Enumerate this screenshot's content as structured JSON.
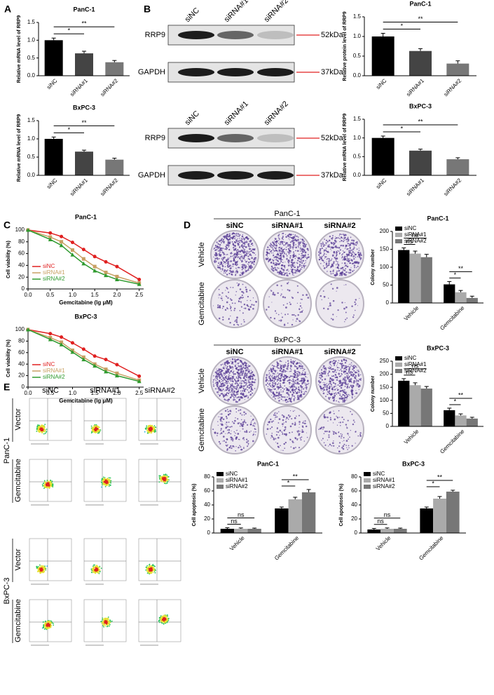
{
  "panel_labels": [
    "A",
    "B",
    "C",
    "D",
    "E"
  ],
  "blots": [
    {
      "lanes": [
        "siNC",
        "siRNA#1",
        "siRNA#2"
      ],
      "rows": [
        {
          "name": "RRP9",
          "size": "52kDa"
        },
        {
          "name": "GAPDH",
          "size": "37kDa"
        }
      ]
    },
    {
      "lanes": [
        "siNC",
        "siRNA#1",
        "siRNA#2"
      ],
      "rows": [
        {
          "name": "RRP9",
          "size": "52kDa"
        },
        {
          "name": "GAPDH",
          "size": "37kDa"
        }
      ]
    }
  ],
  "colony": [
    {
      "cell": "PanC-1",
      "columns": [
        "siNC",
        "siRNA#1",
        "siRNA#2"
      ],
      "rows": [
        "Vehicle",
        "Gemcitabine"
      ]
    },
    {
      "cell": "BxPC-3",
      "columns": [
        "siNC",
        "siRNA#1",
        "siRNA#2"
      ],
      "rows": [
        "Vehicle",
        "Gemcitabine"
      ]
    }
  ],
  "flow": {
    "columns": [
      "siNC",
      "siRNA#1",
      "siRNA#2"
    ],
    "groups": [
      {
        "cell": "PanC-1",
        "rows": [
          "Vector",
          "Gemcitabine"
        ]
      },
      {
        "cell": "BxPC-3",
        "rows": [
          "Vector",
          "Gemcitabine"
        ]
      }
    ]
  },
  "chart_data": [
    {
      "type": "bar",
      "title": "PanC-1",
      "ylabel": "Relative mRNA level of RRP9",
      "categories": [
        "siNC",
        "siRNA#1",
        "siRNA#2"
      ],
      "values": [
        1.0,
        0.63,
        0.38
      ],
      "errors": [
        0.06,
        0.06,
        0.05
      ],
      "colors": [
        "#000000",
        "#444444",
        "#777777"
      ],
      "ylim": [
        0,
        1.5
      ],
      "yticks": [
        {
          "value": 0,
          "label": "0.0"
        },
        {
          "value": 0.5,
          "label": "0.5"
        },
        {
          "value": 1,
          "label": "1.0"
        },
        {
          "value": 1.5,
          "label": "1.5"
        }
      ],
      "annotations": [
        "*",
        "**"
      ]
    },
    {
      "type": "bar",
      "title": "BxPC-3",
      "ylabel": "Relative mRNA level of RRP9",
      "categories": [
        "siNC",
        "siRNA#1",
        "siRNA#2"
      ],
      "values": [
        1.0,
        0.65,
        0.43
      ],
      "errors": [
        0.05,
        0.04,
        0.04
      ],
      "colors": [
        "#000000",
        "#444444",
        "#777777"
      ],
      "ylim": [
        0,
        1.5
      ],
      "yticks": [
        {
          "value": 0,
          "label": "0.0"
        },
        {
          "value": 0.5,
          "label": "0.5"
        },
        {
          "value": 1,
          "label": "1.0"
        },
        {
          "value": 1.5,
          "label": "1.5"
        }
      ],
      "annotations": [
        "*",
        "**"
      ]
    },
    {
      "type": "bar",
      "title": "PanC-1",
      "ylabel": "Relative protein level of RRP9",
      "categories": [
        "siNC",
        "siRNA#1",
        "siRNA#2"
      ],
      "values": [
        1.0,
        0.63,
        0.31
      ],
      "errors": [
        0.08,
        0.06,
        0.07
      ],
      "colors": [
        "#000000",
        "#444444",
        "#777777"
      ],
      "ylim": [
        0,
        1.5
      ],
      "yticks": [
        {
          "value": 0,
          "label": "0.0"
        },
        {
          "value": 0.5,
          "label": "0.5"
        },
        {
          "value": 1,
          "label": "1.0"
        },
        {
          "value": 1.5,
          "label": "1.5"
        }
      ],
      "annotations": [
        "*",
        "**"
      ]
    },
    {
      "type": "bar",
      "title": "BxPC-3",
      "ylabel": "Relative mRNA level of RRP9",
      "categories": [
        "siNC",
        "siRNA#1",
        "siRNA#2"
      ],
      "values": [
        1.0,
        0.66,
        0.43
      ],
      "errors": [
        0.05,
        0.04,
        0.04
      ],
      "colors": [
        "#000000",
        "#444444",
        "#777777"
      ],
      "ylim": [
        0,
        1.5
      ],
      "yticks": [
        {
          "value": 0,
          "label": "0.0"
        },
        {
          "value": 0.5,
          "label": "0.5"
        },
        {
          "value": 1,
          "label": "1.0"
        },
        {
          "value": 1.5,
          "label": "1.5"
        }
      ],
      "annotations": [
        "*",
        "**"
      ]
    },
    {
      "type": "line",
      "title": "PanC-1",
      "xlabel": "Gemcitabine (lg μM)",
      "ylabel": "Cell viability (%)",
      "x": [
        0,
        0.5,
        0.75,
        1.0,
        1.25,
        1.5,
        1.75,
        2.0,
        2.5
      ],
      "series": [
        {
          "name": "siNC",
          "color": "#e02020",
          "values": [
            100,
            95,
            89,
            79,
            67,
            55,
            46,
            38,
            16
          ]
        },
        {
          "name": "siRNA#1",
          "color": "#c8a064",
          "values": [
            100,
            88,
            80,
            66,
            51,
            38,
            28,
            21,
            10
          ]
        },
        {
          "name": "siRNA#2",
          "color": "#2e9a2e",
          "values": [
            100,
            84,
            74,
            58,
            43,
            31,
            23,
            16,
            8
          ]
        }
      ],
      "xlim": [
        0,
        2.6
      ],
      "xticks": [
        {
          "value": 0,
          "label": "0.0"
        },
        {
          "value": 0.5,
          "label": "0.5"
        },
        {
          "value": 1,
          "label": "1.0"
        },
        {
          "value": 1.5,
          "label": "1.5"
        },
        {
          "value": 2,
          "label": "2.0"
        },
        {
          "value": 2.5,
          "label": "2.5"
        }
      ],
      "ylim": [
        0,
        100
      ],
      "yticks": [
        0,
        20,
        40,
        60,
        80,
        100
      ],
      "legend": "lower left"
    },
    {
      "type": "line",
      "title": "BxPC-3",
      "xlabel": "Gemcitabine (lg μM)",
      "ylabel": "Cell viability (%)",
      "x": [
        0,
        0.5,
        0.75,
        1.0,
        1.25,
        1.5,
        1.75,
        2.0,
        2.5
      ],
      "series": [
        {
          "name": "siNC",
          "color": "#e02020",
          "values": [
            100,
            93,
            87,
            77,
            66,
            54,
            48,
            39,
            19
          ]
        },
        {
          "name": "siRNA#1",
          "color": "#c8a064",
          "values": [
            100,
            86,
            78,
            64,
            52,
            40,
            31,
            24,
            12
          ]
        },
        {
          "name": "siRNA#2",
          "color": "#2e9a2e",
          "values": [
            100,
            83,
            74,
            61,
            48,
            37,
            27,
            20,
            10
          ]
        }
      ],
      "xlim": [
        0,
        2.6
      ],
      "xticks": [
        {
          "value": 0,
          "label": "0.0"
        },
        {
          "value": 0.5,
          "label": "0.5"
        },
        {
          "value": 1,
          "label": "1.0"
        },
        {
          "value": 1.5,
          "label": "1.5"
        },
        {
          "value": 2,
          "label": "2.0"
        },
        {
          "value": 2.5,
          "label": "2.5"
        }
      ],
      "ylim": [
        0,
        100
      ],
      "yticks": [
        0,
        20,
        40,
        60,
        80,
        100
      ],
      "legend": "lower left"
    },
    {
      "type": "grouped_bar",
      "title": "PanC-1",
      "ylabel": "Colony number",
      "categories": [
        "Vehicle",
        "Gemcitabine"
      ],
      "series": [
        {
          "name": "siNC",
          "color": "#000000",
          "values": [
            148,
            52
          ],
          "errors": [
            6,
            8
          ]
        },
        {
          "name": "siRNA#1",
          "color": "#aaaaaa",
          "values": [
            138,
            30
          ],
          "errors": [
            7,
            5
          ]
        },
        {
          "name": "siRNA#2",
          "color": "#777777",
          "values": [
            128,
            14
          ],
          "errors": [
            8,
            5
          ]
        }
      ],
      "ylim": [
        0,
        200
      ],
      "yticks": [
        0,
        50,
        100,
        150,
        200
      ],
      "legend": "upper left",
      "annotations": [
        "ns",
        "ns",
        "*",
        "**"
      ]
    },
    {
      "type": "grouped_bar",
      "title": "BxPC-3",
      "ylabel": "Colony number",
      "categories": [
        "Vehicle",
        "Gemcitabine"
      ],
      "series": [
        {
          "name": "siNC",
          "color": "#000000",
          "values": [
            175,
            62
          ],
          "errors": [
            8,
            8
          ]
        },
        {
          "name": "siRNA#1",
          "color": "#aaaaaa",
          "values": [
            158,
            42
          ],
          "errors": [
            9,
            6
          ]
        },
        {
          "name": "siRNA#2",
          "color": "#777777",
          "values": [
            145,
            30
          ],
          "errors": [
            8,
            5
          ]
        }
      ],
      "ylim": [
        0,
        250
      ],
      "yticks": [
        0,
        50,
        100,
        150,
        200,
        250
      ],
      "legend": "upper left",
      "annotations": [
        "ns",
        "ns",
        "*",
        "**"
      ]
    },
    {
      "type": "grouped_bar",
      "title": "PanC-1",
      "ylabel": "Cell apoptosis (%)",
      "categories": [
        "Vehicle",
        "Gemcitabine"
      ],
      "series": [
        {
          "name": "siNC",
          "color": "#000000",
          "values": [
            6,
            35
          ],
          "errors": [
            1.5,
            2
          ]
        },
        {
          "name": "siRNA#1",
          "color": "#aaaaaa",
          "values": [
            6,
            48
          ],
          "errors": [
            1.2,
            3
          ]
        },
        {
          "name": "siRNA#2",
          "color": "#777777",
          "values": [
            6,
            58
          ],
          "errors": [
            1,
            4
          ]
        }
      ],
      "ylim": [
        0,
        80
      ],
      "yticks": [
        0,
        20,
        40,
        60,
        80
      ],
      "legend": "upper left",
      "annotations": [
        "ns",
        "ns",
        "*",
        "**"
      ]
    },
    {
      "type": "grouped_bar",
      "title": "BxPC-3",
      "ylabel": "Cell apoptosis (%)",
      "categories": [
        "Vehicle",
        "Gemcitabine"
      ],
      "series": [
        {
          "name": "siNC",
          "color": "#000000",
          "values": [
            5,
            35
          ],
          "errors": [
            1.5,
            2
          ]
        },
        {
          "name": "siRNA#1",
          "color": "#aaaaaa",
          "values": [
            6,
            49
          ],
          "errors": [
            1.2,
            3
          ]
        },
        {
          "name": "siRNA#2",
          "color": "#777777",
          "values": [
            6,
            59
          ],
          "errors": [
            1,
            2
          ]
        }
      ],
      "ylim": [
        0,
        80
      ],
      "yticks": [
        0,
        20,
        40,
        60,
        80
      ],
      "legend": "upper left",
      "annotations": [
        "ns",
        "ns",
        "*",
        "**"
      ]
    }
  ]
}
